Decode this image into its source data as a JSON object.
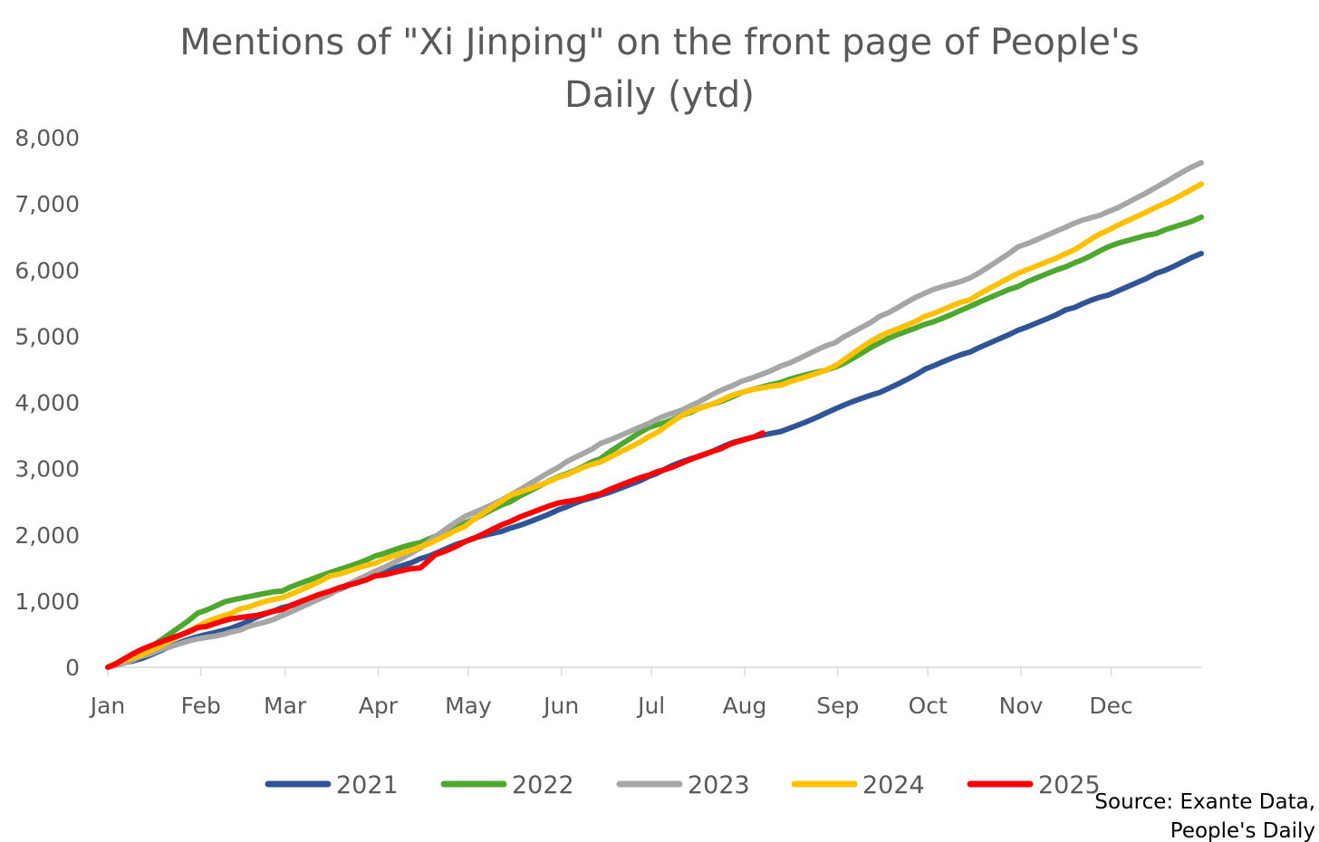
{
  "chart_data": {
    "type": "line",
    "title_lines": [
      "Mentions of \"Xi Jinping\" on the front page of People's",
      "Daily (ytd)"
    ],
    "xlabel": "",
    "ylabel": "",
    "ylim": [
      0,
      8000
    ],
    "y_ticks": [
      "0",
      "1,000",
      "2,000",
      "3,000",
      "4,000",
      "5,000",
      "6,000",
      "7,000",
      "8,000"
    ],
    "x_ticks": [
      "Jan",
      "Feb",
      "Mar",
      "Apr",
      "May",
      "Jun",
      "Jul",
      "Aug",
      "Sep",
      "Oct",
      "Nov",
      "Dec"
    ],
    "x_unit": "day of year",
    "xlim": [
      1,
      365
    ],
    "grid": false,
    "legend_position": "bottom",
    "series": [
      {
        "name": "2021",
        "color": "#2F5597",
        "points": [
          [
            1,
            0
          ],
          [
            15,
            180
          ],
          [
            30,
            450
          ],
          [
            45,
            640
          ],
          [
            59,
            900
          ],
          [
            75,
            1130
          ],
          [
            90,
            1390
          ],
          [
            105,
            1640
          ],
          [
            120,
            1900
          ],
          [
            135,
            2100
          ],
          [
            151,
            2380
          ],
          [
            165,
            2600
          ],
          [
            181,
            2880
          ],
          [
            195,
            3150
          ],
          [
            212,
            3430
          ],
          [
            225,
            3560
          ],
          [
            243,
            3900
          ],
          [
            258,
            4150
          ],
          [
            273,
            4500
          ],
          [
            288,
            4760
          ],
          [
            304,
            5090
          ],
          [
            320,
            5400
          ],
          [
            334,
            5620
          ],
          [
            350,
            5950
          ],
          [
            365,
            6250
          ]
        ]
      },
      {
        "name": "2022",
        "color": "#4EA72E",
        "points": [
          [
            1,
            0
          ],
          [
            15,
            300
          ],
          [
            31,
            820
          ],
          [
            40,
            990
          ],
          [
            59,
            1150
          ],
          [
            75,
            1430
          ],
          [
            90,
            1680
          ],
          [
            105,
            1880
          ],
          [
            120,
            2180
          ],
          [
            135,
            2500
          ],
          [
            151,
            2880
          ],
          [
            165,
            3150
          ],
          [
            181,
            3620
          ],
          [
            195,
            3850
          ],
          [
            212,
            4150
          ],
          [
            225,
            4300
          ],
          [
            243,
            4530
          ],
          [
            258,
            4900
          ],
          [
            273,
            5180
          ],
          [
            288,
            5450
          ],
          [
            304,
            5750
          ],
          [
            320,
            6050
          ],
          [
            334,
            6350
          ],
          [
            350,
            6550
          ],
          [
            365,
            6800
          ]
        ]
      },
      {
        "name": "2023",
        "color": "#A6A6A6",
        "points": [
          [
            1,
            0
          ],
          [
            15,
            200
          ],
          [
            31,
            430
          ],
          [
            45,
            560
          ],
          [
            59,
            780
          ],
          [
            75,
            1100
          ],
          [
            90,
            1450
          ],
          [
            105,
            1800
          ],
          [
            120,
            2280
          ],
          [
            135,
            2600
          ],
          [
            151,
            3020
          ],
          [
            165,
            3380
          ],
          [
            181,
            3680
          ],
          [
            195,
            3950
          ],
          [
            212,
            4320
          ],
          [
            225,
            4550
          ],
          [
            243,
            4900
          ],
          [
            258,
            5300
          ],
          [
            273,
            5650
          ],
          [
            288,
            5880
          ],
          [
            304,
            6350
          ],
          [
            320,
            6650
          ],
          [
            334,
            6880
          ],
          [
            350,
            7250
          ],
          [
            365,
            7620
          ]
        ]
      },
      {
        "name": "2024",
        "color": "#FFC000",
        "points": [
          [
            1,
            0
          ],
          [
            15,
            250
          ],
          [
            31,
            620
          ],
          [
            45,
            880
          ],
          [
            59,
            1050
          ],
          [
            75,
            1380
          ],
          [
            90,
            1570
          ],
          [
            105,
            1820
          ],
          [
            120,
            2130
          ],
          [
            135,
            2600
          ],
          [
            151,
            2870
          ],
          [
            165,
            3100
          ],
          [
            181,
            3480
          ],
          [
            195,
            3870
          ],
          [
            212,
            4150
          ],
          [
            225,
            4260
          ],
          [
            243,
            4550
          ],
          [
            258,
            5000
          ],
          [
            273,
            5300
          ],
          [
            288,
            5550
          ],
          [
            304,
            5950
          ],
          [
            320,
            6250
          ],
          [
            334,
            6600
          ],
          [
            350,
            6950
          ],
          [
            365,
            7300
          ]
        ]
      },
      {
        "name": "2025",
        "color": "#FF0000",
        "points": [
          [
            1,
            0
          ],
          [
            15,
            320
          ],
          [
            31,
            600
          ],
          [
            45,
            750
          ],
          [
            59,
            870
          ],
          [
            75,
            1150
          ],
          [
            90,
            1380
          ],
          [
            105,
            1500
          ],
          [
            110,
            1700
          ],
          [
            120,
            1900
          ],
          [
            135,
            2200
          ],
          [
            151,
            2480
          ],
          [
            165,
            2620
          ],
          [
            181,
            2900
          ],
          [
            195,
            3140
          ],
          [
            205,
            3300
          ],
          [
            219,
            3540
          ]
        ]
      }
    ],
    "source_lines": [
      "Source: Exante Data,",
      "People's Daily"
    ]
  }
}
